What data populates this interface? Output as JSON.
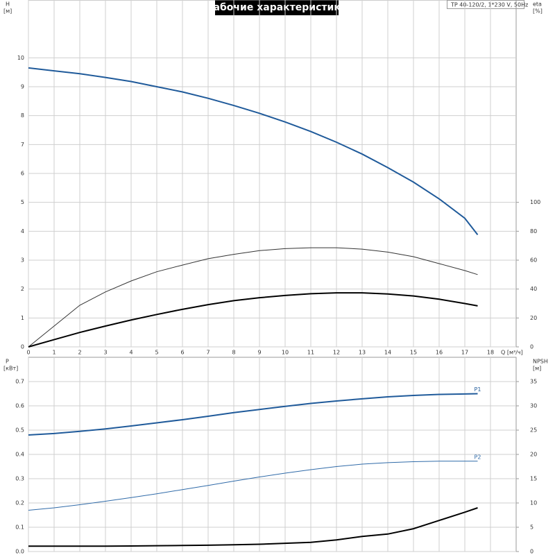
{
  "chart_data": [
    {
      "type": "line",
      "title": "Рабочие характеристики",
      "subtitle": "TP 40-120/2, 1*230 V, 50Hz",
      "ylabel": "H",
      "ylabel_unit": "[м]",
      "y2label": "eta",
      "y2label_unit": "[%]",
      "xlabel": "Q [м³/ч]",
      "xlim": [
        0,
        19
      ],
      "xticks": [
        0,
        1,
        2,
        3,
        4,
        5,
        6,
        7,
        8,
        9,
        10,
        11,
        12,
        13,
        14,
        15,
        16,
        17,
        18
      ],
      "ylim": [
        0,
        12
      ],
      "yticks": [
        0,
        1,
        2,
        3,
        4,
        5,
        6,
        7,
        8,
        9,
        10
      ],
      "y2lim": [
        0,
        240
      ],
      "y2ticks": [
        0,
        20,
        40,
        60,
        80,
        100
      ],
      "grid": true,
      "x": [
        0,
        1,
        2,
        3,
        4,
        5,
        6,
        7,
        8,
        9,
        10,
        11,
        12,
        13,
        14,
        15,
        16,
        17,
        17.5
      ],
      "series": [
        {
          "color": "#1f5a9a",
          "line_width": 2,
          "values": [
            9.65,
            9.55,
            9.45,
            9.32,
            9.18,
            9.0,
            8.82,
            8.6,
            8.35,
            8.08,
            7.78,
            7.45,
            7.08,
            6.67,
            6.2,
            5.7,
            5.12,
            4.45,
            3.88
          ]
        },
        {
          "color": "#333333",
          "line_width": 1,
          "axis": "y2",
          "values": [
            0,
            14.4,
            28.8,
            38,
            45.6,
            52,
            56.6,
            61,
            64,
            66.6,
            68,
            68.6,
            68.6,
            67.6,
            65.6,
            62.4,
            57.6,
            52.8,
            50
          ]
        },
        {
          "color": "#000000",
          "line_width": 2,
          "axis": "y2",
          "values": [
            0,
            5,
            10,
            14.4,
            18.6,
            22.4,
            26,
            29.2,
            32,
            34,
            35.6,
            36.8,
            37.4,
            37.4,
            36.6,
            35.2,
            33,
            30,
            28.4
          ]
        }
      ]
    },
    {
      "type": "line",
      "ylabel": "P",
      "ylabel_unit": "[кВт]",
      "y2label": "NPSH",
      "y2label_unit": "[м]",
      "xlim": [
        0,
        19
      ],
      "xticks": [
        0,
        1,
        2,
        3,
        4,
        5,
        6,
        7,
        8,
        9,
        10,
        11,
        12,
        13,
        14,
        15,
        16,
        17,
        18
      ],
      "ylim": [
        0,
        0.8
      ],
      "yticks": [
        {
          "value": 0,
          "label": "0.0"
        },
        0.1,
        0.2,
        0.3,
        0.4,
        0.5,
        0.6,
        0.7
      ],
      "y2lim": [
        0,
        40
      ],
      "y2ticks": [
        0,
        5,
        10,
        15,
        20,
        25,
        30,
        35
      ],
      "grid": true,
      "x": [
        0,
        1,
        2,
        3,
        4,
        5,
        6,
        7,
        8,
        9,
        10,
        11,
        12,
        13,
        14,
        15,
        16,
        17,
        17.5
      ],
      "series": [
        {
          "name": "P1",
          "color": "#1f5a9a",
          "line_width": 2,
          "values": [
            0.48,
            0.486,
            0.495,
            0.505,
            0.517,
            0.53,
            0.543,
            0.557,
            0.572,
            0.585,
            0.598,
            0.61,
            0.62,
            0.629,
            0.637,
            0.643,
            0.647,
            0.649,
            0.65
          ]
        },
        {
          "name": "P2",
          "color": "#2f6aa8",
          "line_width": 1,
          "values": [
            0.17,
            0.18,
            0.193,
            0.207,
            0.222,
            0.238,
            0.255,
            0.272,
            0.29,
            0.307,
            0.323,
            0.337,
            0.35,
            0.36,
            0.366,
            0.37,
            0.372,
            0.372,
            0.372
          ]
        },
        {
          "color": "#000000",
          "line_width": 2,
          "axis": "y2",
          "values": [
            1.1,
            1.1,
            1.1,
            1.1,
            1.15,
            1.2,
            1.25,
            1.3,
            1.4,
            1.5,
            1.7,
            1.9,
            2.4,
            3.1,
            3.6,
            4.7,
            6.4,
            8.1,
            9
          ]
        }
      ]
    }
  ]
}
